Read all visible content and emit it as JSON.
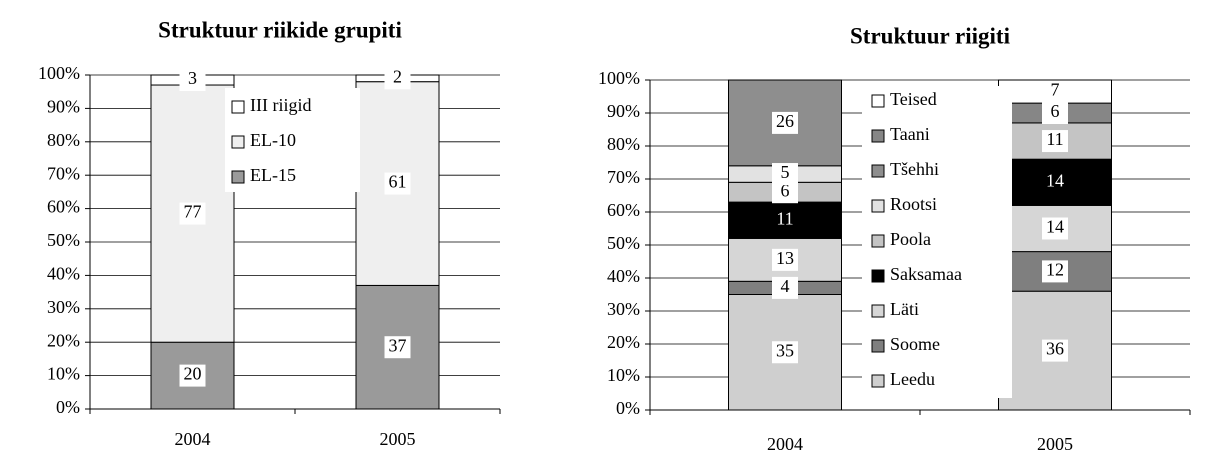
{
  "chart_data": [
    {
      "type": "stacked-bar",
      "title": "Struktuur riikide grupiti",
      "categories": [
        "2004",
        "2005"
      ],
      "series": [
        {
          "name": "EL-15",
          "color": "#9a9a9a",
          "values": [
            20,
            37
          ]
        },
        {
          "name": "EL-10",
          "color": "#efefef",
          "values": [
            77,
            61
          ]
        },
        {
          "name": "III riigid",
          "color": "#ffffff",
          "values": [
            3,
            2
          ]
        }
      ],
      "ylim": [
        0,
        100
      ],
      "yticks": [
        {
          "value": 0,
          "label": "0%"
        },
        {
          "value": 10,
          "label": "10%"
        },
        {
          "value": 20,
          "label": "20%"
        },
        {
          "value": 30,
          "label": "30%"
        },
        {
          "value": 40,
          "label": "40%"
        },
        {
          "value": 50,
          "label": "50%"
        },
        {
          "value": 60,
          "label": "60%"
        },
        {
          "value": 70,
          "label": "70%"
        },
        {
          "value": 80,
          "label": "80%"
        },
        {
          "value": 90,
          "label": "90%"
        },
        {
          "value": 100,
          "label": "100%"
        }
      ],
      "grid": true
    },
    {
      "type": "stacked-bar",
      "title": "Struktuur riigiti",
      "categories": [
        "2004",
        "2005"
      ],
      "series": [
        {
          "name": "Leedu",
          "color": "#cfcfcf",
          "values": [
            35,
            36
          ]
        },
        {
          "name": "Soome",
          "color": "#7f7f7f",
          "values": [
            4,
            12
          ]
        },
        {
          "name": "Läti",
          "color": "#d6d6d6",
          "values": [
            13,
            14
          ]
        },
        {
          "name": "Saksamaa",
          "color": "#000000",
          "values": [
            11,
            14
          ]
        },
        {
          "name": "Poola",
          "color": "#c4c4c4",
          "values": [
            6,
            11
          ]
        },
        {
          "name": "Rootsi",
          "color": "#e2e2e2",
          "values": [
            5,
            0
          ]
        },
        {
          "name": "Tšehhi",
          "color": "#8e8e8e",
          "values": [
            26,
            0
          ]
        },
        {
          "name": "Taani",
          "color": "#868686",
          "values": [
            0,
            6
          ]
        },
        {
          "name": "Teised",
          "color": "#ffffff",
          "values": [
            0,
            7
          ]
        }
      ],
      "ylim": [
        0,
        100
      ],
      "yticks": [
        {
          "value": 0,
          "label": "0%"
        },
        {
          "value": 10,
          "label": "10%"
        },
        {
          "value": 20,
          "label": "20%"
        },
        {
          "value": 30,
          "label": "30%"
        },
        {
          "value": 40,
          "label": "40%"
        },
        {
          "value": 50,
          "label": "50%"
        },
        {
          "value": 60,
          "label": "60%"
        },
        {
          "value": 70,
          "label": "70%"
        },
        {
          "value": 80,
          "label": "80%"
        },
        {
          "value": 90,
          "label": "90%"
        },
        {
          "value": 100,
          "label": "100%"
        }
      ],
      "grid": true
    }
  ]
}
